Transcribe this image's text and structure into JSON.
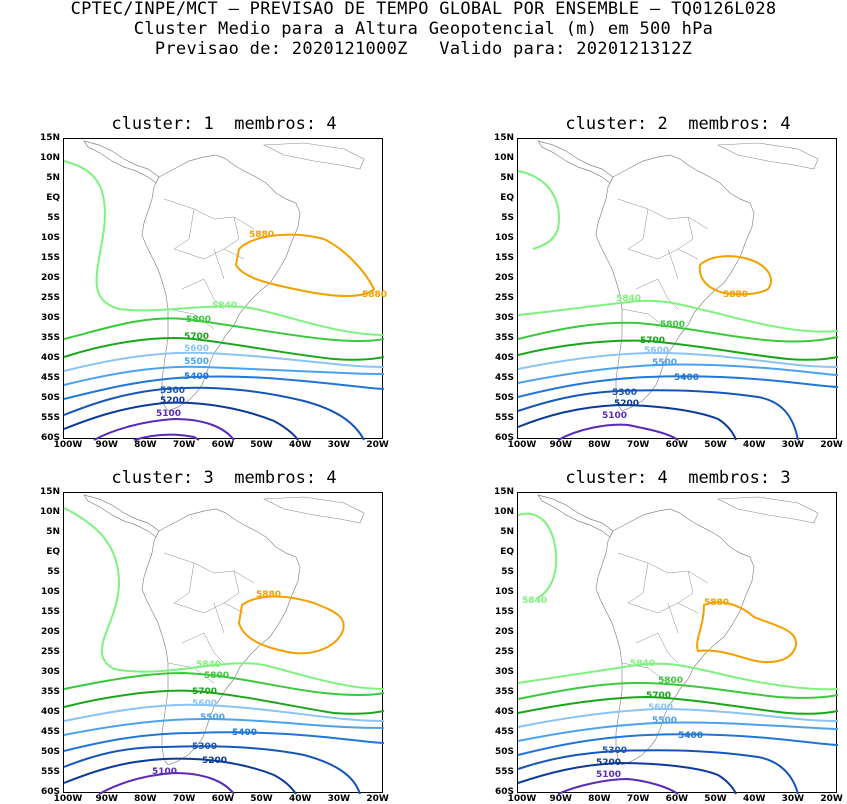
{
  "header": {
    "line1": "CPTEC/INPE/MCT – PREVISAO DE TEMPO GLOBAL POR ENSEMBLE – TQ0126L028",
    "line2": "Cluster Medio para a Altura Geopotencial (m) em 500 hPa",
    "line3": "Previsao de: 2020121000Z   Valido para: 2020121312Z"
  },
  "axes": {
    "lat_labels": [
      "15N",
      "10N",
      "5N",
      "EQ",
      "5S",
      "10S",
      "15S",
      "20S",
      "25S",
      "30S",
      "35S",
      "40S",
      "45S",
      "50S",
      "55S",
      "60S"
    ],
    "lon_labels": [
      "100W",
      "90W",
      "80W",
      "70W",
      "60W",
      "50W",
      "40W",
      "30W",
      "20W"
    ]
  },
  "colors": {
    "c5880": "#f5a000",
    "c5840": "#7ef27e",
    "c5800": "#3cc83c",
    "c5700": "#1aa61a",
    "c5600": "#8cc4f5",
    "c5500": "#4ba2ee",
    "c5400": "#2276d8",
    "c5300": "#1456b8",
    "c5200": "#0c3a98",
    "c5100": "#5a2ab8",
    "coast": "#8a8a8a"
  },
  "panels": [
    {
      "title": "cluster: 1  membros: 4",
      "labels": {
        "c5880a": "5880",
        "c5880b": "5880",
        "c5840": "5840",
        "c5800": "5800",
        "c5700": "5700",
        "c5600": "5600",
        "c5500": "5500",
        "c5400": "5400",
        "c5300": "5300",
        "c5200": "5200",
        "c5100": "5100"
      }
    },
    {
      "title": "cluster: 2  membros: 4",
      "labels": {
        "c5880a": "5880",
        "c5840": "5840",
        "c5800": "5800",
        "c5700": "5700",
        "c5600": "5600",
        "c5500": "5500",
        "c5400": "5400",
        "c5300": "5300",
        "c5200": "5200",
        "c5100": "5100"
      }
    },
    {
      "title": "cluster: 3  membros: 4",
      "labels": {
        "c5880a": "5880",
        "c5840": "5840",
        "c5800": "5800",
        "c5700": "5700",
        "c5600": "5600",
        "c5500": "5500",
        "c5400": "5400",
        "c5300": "5300",
        "c5200": "5200",
        "c5100": "5100"
      }
    },
    {
      "title": "cluster: 4  membros: 3",
      "labels": {
        "c5880a": "5880",
        "c5840a": "5840",
        "c5840": "5840",
        "c5800": "5800",
        "c5700": "5700",
        "c5600": "5600",
        "c5500": "5500",
        "c5400": "5400",
        "c5300": "5300",
        "c5200": "5200",
        "c5100": "5100"
      }
    }
  ]
}
